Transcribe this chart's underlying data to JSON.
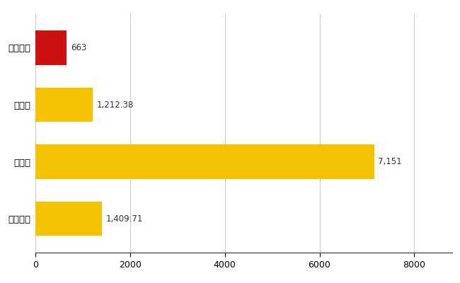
{
  "categories": [
    "高根沢町",
    "県平均",
    "県最大",
    "全国平均"
  ],
  "values": [
    663,
    1212.38,
    7151,
    1409.71
  ],
  "bar_colors": [
    "#cc1111",
    "#f5c200",
    "#f5c200",
    "#f5c200"
  ],
  "value_labels": [
    "663",
    "1,212.38",
    "7,151",
    "1,409.71"
  ],
  "xlim": [
    0,
    8800
  ],
  "xticks": [
    0,
    2000,
    4000,
    6000,
    8000
  ],
  "grid_color": "#cccccc",
  "background_color": "#ffffff",
  "bar_height": 0.6
}
